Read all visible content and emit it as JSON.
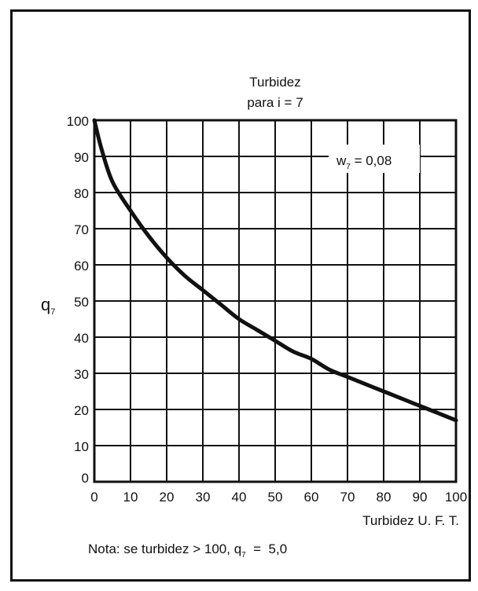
{
  "chart_data": {
    "type": "line",
    "title": "Turbidez",
    "subtitle": "para i = 7",
    "xlabel": "Turbidez U. F. T.",
    "ylabel": {
      "main": "q",
      "sub": "7"
    },
    "xlim": [
      0,
      100
    ],
    "ylim": [
      0,
      100
    ],
    "x_ticks": [
      "0",
      "10",
      "20",
      "30",
      "40",
      "50",
      "60",
      "70",
      "80",
      "90",
      "100"
    ],
    "y_ticks": [
      "0",
      "10",
      "20",
      "30",
      "40",
      "50",
      "60",
      "70",
      "80",
      "90",
      "100"
    ],
    "grid": true,
    "annotation": {
      "main": "w",
      "sub": "7",
      "rest": " = 0,08"
    },
    "series": [
      {
        "x": [
          0,
          2,
          5,
          10,
          15,
          20,
          25,
          30,
          35,
          40,
          45,
          50,
          55,
          60,
          65,
          70,
          75,
          80,
          85,
          90,
          95,
          100
        ],
        "y": [
          100,
          92,
          83,
          75,
          68,
          62,
          57,
          53,
          49,
          45,
          42,
          39,
          36,
          34,
          31,
          29,
          27,
          25,
          23,
          21,
          19,
          17
        ]
      }
    ]
  },
  "note": {
    "prefix": "Nota: se turbidez > 100, q",
    "sub": "7",
    "suffix": "  =  5,0"
  },
  "colors": {
    "ink": "#111111",
    "background": "#ffffff"
  }
}
